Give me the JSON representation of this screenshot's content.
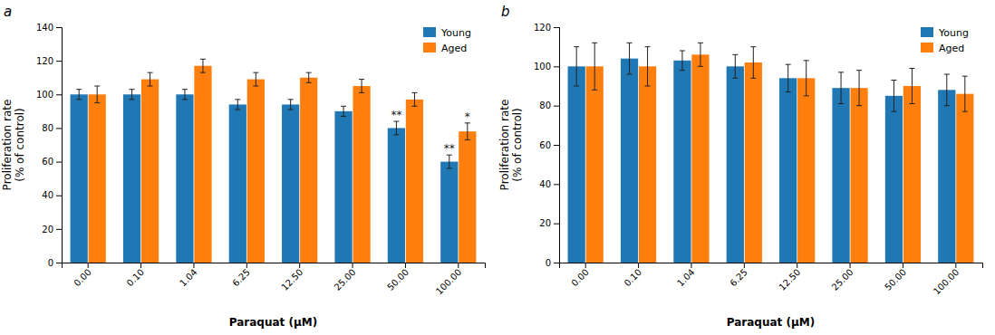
{
  "chart_data": [
    {
      "type": "bar",
      "title": "a",
      "categories": [
        "0.00",
        "0.10",
        "1.04",
        "6.25",
        "12.50",
        "25.00",
        "50.00",
        "100.00"
      ],
      "series": [
        {
          "name": "Young",
          "values": [
            100,
            100,
            100,
            94,
            94,
            90,
            80,
            60
          ],
          "errors": [
            3,
            3,
            3,
            3,
            3,
            3,
            4,
            4
          ]
        },
        {
          "name": "Aged",
          "values": [
            100,
            109,
            117,
            109,
            110,
            105,
            97,
            78
          ],
          "errors": [
            5,
            4,
            4,
            4,
            3,
            4,
            4,
            5
          ]
        }
      ],
      "xlabel": "Paraquat (μM)",
      "ylabel": "Proliferation rate\n(% of control)",
      "ylim": [
        0,
        140
      ],
      "yticks": [
        0,
        20,
        40,
        60,
        80,
        100,
        120,
        140
      ],
      "legend": "upper right",
      "grid": false,
      "annotations": [
        {
          "text": "**",
          "series": "Young",
          "category": "50.00"
        },
        {
          "text": "**",
          "series": "Young",
          "category": "100.00"
        },
        {
          "text": "*",
          "series": "Aged",
          "category": "100.00"
        }
      ]
    },
    {
      "type": "bar",
      "title": "b",
      "categories": [
        "0.00",
        "0.10",
        "1.04",
        "6.25",
        "12.50",
        "25.00",
        "50.00",
        "100.00"
      ],
      "series": [
        {
          "name": "Young",
          "values": [
            100,
            104,
            103,
            100,
            94,
            89,
            85,
            88
          ],
          "errors": [
            10,
            8,
            5,
            6,
            7,
            8,
            8,
            8
          ]
        },
        {
          "name": "Aged",
          "values": [
            100,
            100,
            106,
            102,
            94,
            89,
            90,
            86
          ],
          "errors": [
            12,
            10,
            6,
            8,
            9,
            9,
            9,
            9
          ]
        }
      ],
      "xlabel": "Paraquat (μM)",
      "ylabel": "Proliferation rate\n(% of control)",
      "ylim": [
        0,
        120
      ],
      "yticks": [
        0,
        20,
        40,
        60,
        80,
        100,
        120
      ],
      "legend": "upper right",
      "grid": false
    }
  ]
}
